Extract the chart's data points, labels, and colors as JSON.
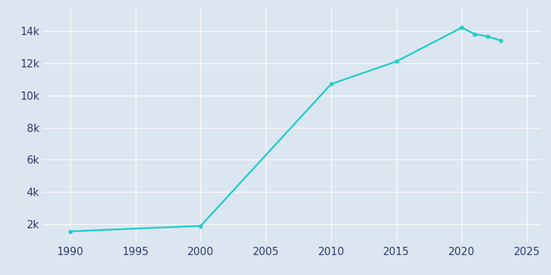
{
  "years": [
    1990,
    2000,
    2010,
    2015,
    2020,
    2021,
    2022,
    2023
  ],
  "population": [
    1560,
    1900,
    10700,
    12100,
    14200,
    13800,
    13650,
    13400
  ],
  "line_color": "#22CCCC",
  "marker_color": "#22CCCC",
  "bg_color": "#DCE6F0",
  "axes_bg_color": "#DCE6F0",
  "xlim": [
    1988,
    2026
  ],
  "ylim": [
    900,
    15400
  ],
  "xticks": [
    1990,
    1995,
    2000,
    2005,
    2010,
    2015,
    2020,
    2025
  ],
  "ytick_values": [
    2000,
    4000,
    6000,
    8000,
    10000,
    12000,
    14000
  ],
  "ytick_labels": [
    "2k",
    "4k",
    "6k",
    "8k",
    "10k",
    "12k",
    "14k"
  ],
  "grid_color": "#FFFFFF",
  "tick_label_color": "#2E3B6E",
  "tick_fontsize": 11
}
